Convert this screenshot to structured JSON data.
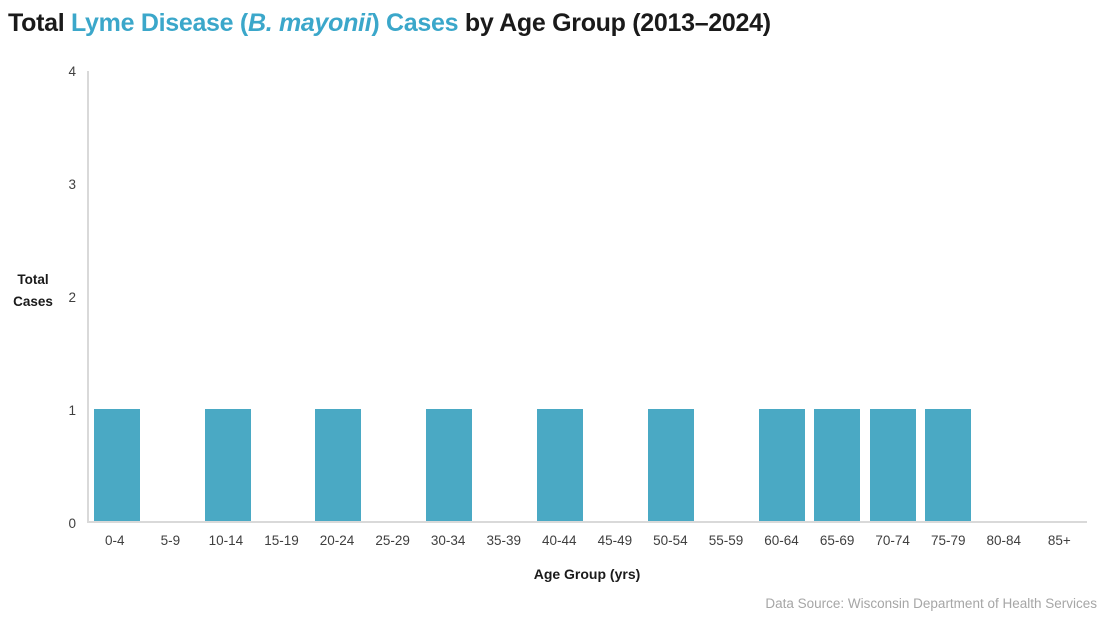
{
  "title": {
    "prefix": "Total ",
    "highlight_open": "Lyme Disease (",
    "highlight_italic": "B. mayonii",
    "highlight_close": ") Cases",
    "suffix": " by Age Group (2013–2024)"
  },
  "chart_data": {
    "type": "bar",
    "title": "Total Lyme Disease (B. mayonii) Cases by Age Group (2013–2024)",
    "categories": [
      "0-4",
      "5-9",
      "10-14",
      "15-19",
      "20-24",
      "25-29",
      "30-34",
      "35-39",
      "40-44",
      "45-49",
      "50-54",
      "55-59",
      "60-64",
      "65-69",
      "70-74",
      "75-79",
      "80-84",
      "85+"
    ],
    "values": [
      1,
      0,
      1,
      0,
      1,
      0,
      1,
      0,
      1,
      0,
      1,
      0,
      1,
      1,
      1,
      1,
      0,
      0
    ],
    "xlabel": "Age Group (yrs)",
    "ylabel": "Total Cases",
    "ylim": [
      0,
      4
    ],
    "yticks": [
      0,
      1,
      2,
      3,
      4
    ],
    "grid": false,
    "legend": false,
    "bar_color": "#4aa9c4"
  },
  "footer": {
    "source": "Data Source: Wisconsin Department of Health Services"
  },
  "colors": {
    "accent": "#3ba7ca",
    "bar": "#4aa9c4",
    "axis_line": "#d9d9d9",
    "text": "#1a1a1a",
    "tick_text": "#3f3f3f",
    "muted": "#a6a6a6"
  }
}
